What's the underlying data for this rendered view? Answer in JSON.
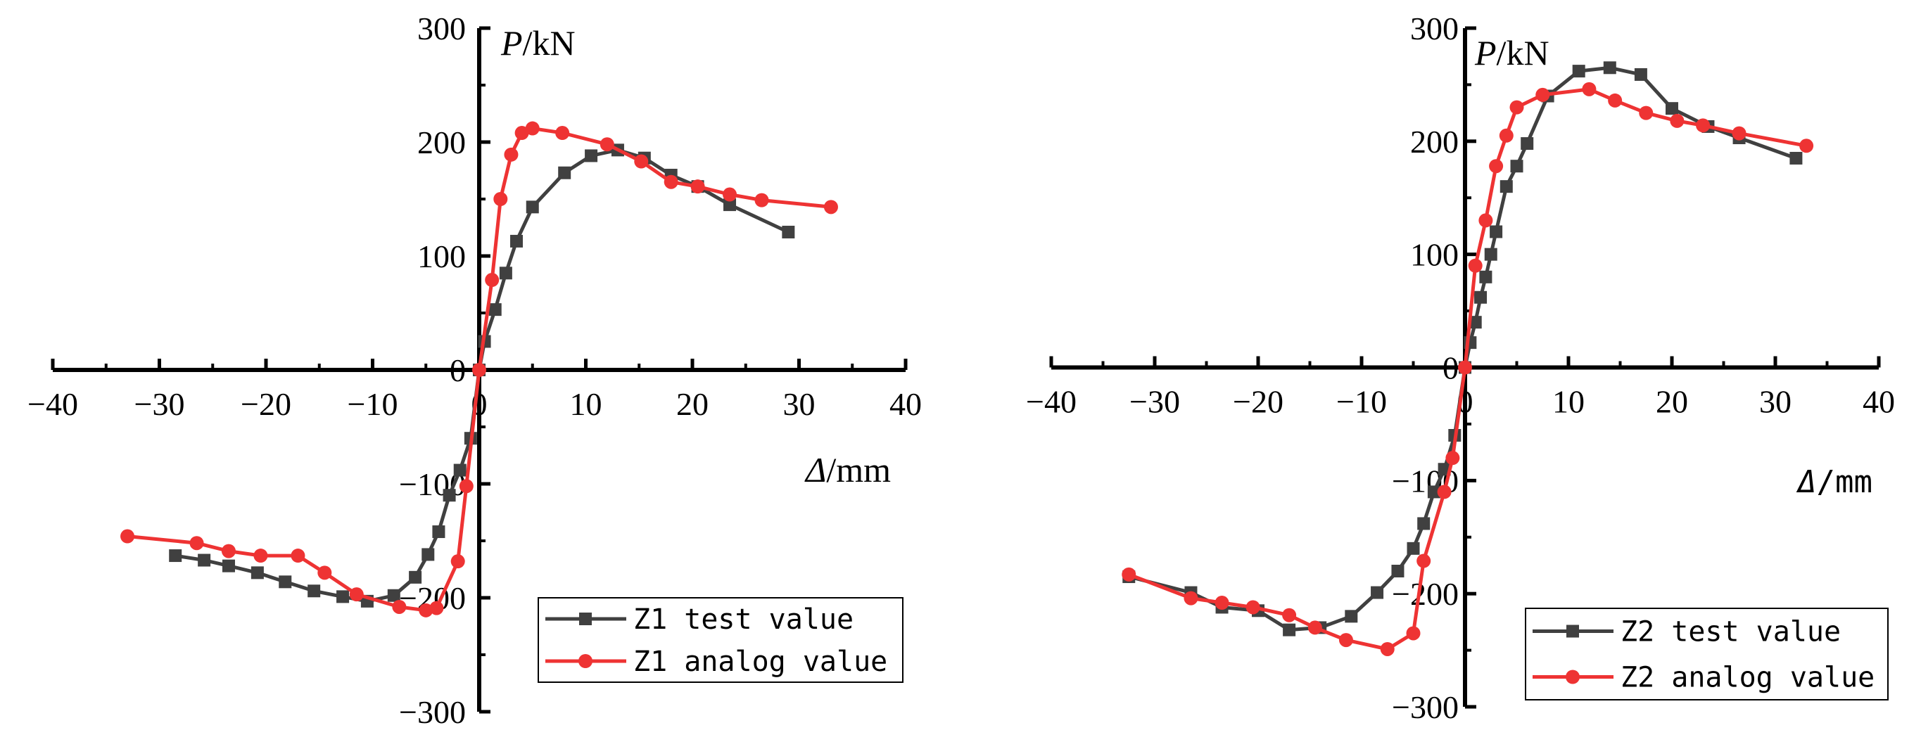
{
  "chart_data": [
    {
      "type": "line",
      "title": "",
      "xlabel": "Δ/mm",
      "ylabel": "P/kN",
      "xlim": [
        -40,
        40
      ],
      "ylim": [
        -300,
        300
      ],
      "xticks": [
        "−40",
        "−30",
        "−20",
        "−10",
        "0",
        "10",
        "20",
        "30",
        "40"
      ],
      "yticks": [
        "−300",
        "−200",
        "−100",
        "0",
        "100",
        "200",
        "300"
      ],
      "legend_position": "bottom-right",
      "series": [
        {
          "name": "Z1 test value",
          "color": "#404040",
          "marker": "square",
          "x": [
            -28.5,
            -25.8,
            -23.5,
            -20.8,
            -18.2,
            -15.5,
            -12.8,
            -10.5,
            -8.0,
            -6.0,
            -4.8,
            -3.8,
            -2.8,
            -1.8,
            -0.8,
            0,
            0.5,
            1.5,
            2.5,
            3.5,
            5.0,
            8.0,
            10.5,
            13.0,
            15.5,
            18.0,
            20.5,
            23.5,
            29.0
          ],
          "y": [
            -163,
            -167,
            -172,
            -178,
            -186,
            -194,
            -199,
            -203,
            -198,
            -182,
            -162,
            -142,
            -110,
            -88,
            -60,
            0,
            25,
            53,
            85,
            113,
            143,
            173,
            188,
            193,
            186,
            171,
            161,
            145,
            121
          ]
        },
        {
          "name": "Z1 analog value",
          "color": "#ee3333",
          "marker": "circle",
          "x": [
            -33.0,
            -26.5,
            -23.5,
            -20.5,
            -17.0,
            -14.5,
            -11.5,
            -7.5,
            -5.0,
            -4.0,
            -2.0,
            -1.2,
            0,
            1.2,
            2.0,
            3.0,
            4.0,
            5.0,
            7.8,
            12.0,
            15.2,
            18.0,
            20.5,
            23.5,
            26.5,
            33.0
          ],
          "y": [
            -146,
            -152,
            -159,
            -163,
            -163,
            -178,
            -197,
            -208,
            -211,
            -209,
            -168,
            -102,
            0,
            79,
            150,
            189,
            208,
            212,
            208,
            198,
            183,
            165,
            161,
            154,
            149,
            143
          ]
        }
      ]
    },
    {
      "type": "line",
      "title": "",
      "xlabel": "Δ/mm",
      "ylabel": "P/kN",
      "xlim": [
        -40,
        40
      ],
      "ylim": [
        -300,
        300
      ],
      "xticks": [
        "−40",
        "−30",
        "−20",
        "−10",
        "0",
        "10",
        "20",
        "30",
        "40"
      ],
      "yticks": [
        "−300",
        "−200",
        "−100",
        "0",
        "100",
        "200",
        "300"
      ],
      "legend_position": "bottom-right",
      "series": [
        {
          "name": "Z2 test value",
          "color": "#404040",
          "marker": "square",
          "x": [
            -32.5,
            -26.5,
            -23.5,
            -20.0,
            -17.0,
            -14.0,
            -11.0,
            -8.5,
            -6.5,
            -5.0,
            -4.0,
            -3.0,
            -2.0,
            -1.0,
            0,
            0.5,
            1.0,
            1.5,
            2.0,
            2.5,
            3.0,
            4.0,
            5.0,
            6.0,
            8.0,
            11.0,
            14.0,
            17.0,
            20.0,
            23.5,
            26.5,
            32.0
          ],
          "y": [
            -185,
            -199,
            -212,
            -215,
            -232,
            -230,
            -220,
            -199,
            -180,
            -160,
            -138,
            -110,
            -90,
            -60,
            0,
            22,
            40,
            62,
            80,
            100,
            120,
            160,
            178,
            198,
            240,
            262,
            265,
            259,
            229,
            213,
            203,
            185
          ]
        },
        {
          "name": "Z2 analog value",
          "color": "#ee3333",
          "marker": "circle",
          "x": [
            -32.5,
            -26.5,
            -23.5,
            -20.5,
            -17.0,
            -14.5,
            -11.5,
            -7.5,
            -5.0,
            -4.0,
            -2.0,
            -1.2,
            0,
            1.0,
            2.0,
            3.0,
            4.0,
            5.0,
            7.5,
            12.0,
            14.5,
            17.5,
            20.5,
            23.0,
            26.5,
            33.0
          ],
          "y": [
            -183,
            -204,
            -208,
            -212,
            -219,
            -230,
            -241,
            -249,
            -235,
            -171,
            -110,
            -80,
            0,
            90,
            130,
            178,
            205,
            230,
            241,
            246,
            236,
            225,
            218,
            214,
            207,
            196
          ]
        }
      ]
    }
  ]
}
